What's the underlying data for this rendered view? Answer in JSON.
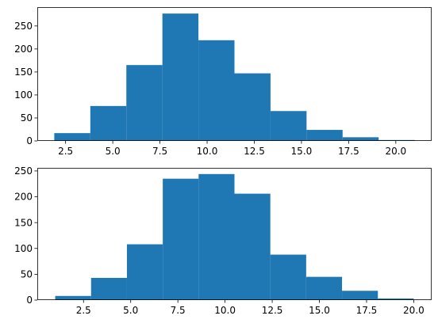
{
  "chart_data": [
    {
      "type": "histogram",
      "title": "",
      "xlabel": "",
      "ylabel": "",
      "bin_edges": [
        1.9,
        3.81,
        5.72,
        7.63,
        9.54,
        11.45,
        13.36,
        15.27,
        17.18,
        19.09,
        21.0
      ],
      "values": [
        17,
        76,
        165,
        277,
        219,
        147,
        65,
        24,
        8,
        2
      ],
      "xlim": [
        1.0,
        21.9
      ],
      "ylim": [
        0,
        291
      ],
      "xticks": [
        2.5,
        5.0,
        7.5,
        10.0,
        12.5,
        15.0,
        17.5,
        20.0
      ],
      "xtick_labels": [
        "2.5",
        "5.0",
        "7.5",
        "10.0",
        "12.5",
        "15.0",
        "17.5",
        "20.0"
      ],
      "yticks": [
        0,
        50,
        100,
        150,
        200,
        250
      ],
      "ytick_labels": [
        "0",
        "50",
        "100",
        "150",
        "200",
        "250"
      ],
      "grid": false,
      "color": "#1f77b4"
    },
    {
      "type": "histogram",
      "title": "",
      "xlabel": "",
      "ylabel": "",
      "bin_edges": [
        1.0,
        2.9,
        4.8,
        6.7,
        8.6,
        10.5,
        12.4,
        14.3,
        16.2,
        18.1,
        20.0
      ],
      "values": [
        8,
        43,
        108,
        235,
        244,
        206,
        88,
        45,
        18,
        3
      ],
      "xlim": [
        0.05,
        20.95
      ],
      "ylim": [
        0,
        256
      ],
      "xticks": [
        2.5,
        5.0,
        7.5,
        10.0,
        12.5,
        15.0,
        17.5,
        20.0
      ],
      "xtick_labels": [
        "2.5",
        "5.0",
        "7.5",
        "10.0",
        "12.5",
        "15.0",
        "17.5",
        "20.0"
      ],
      "yticks": [
        0,
        50,
        100,
        150,
        200,
        250
      ],
      "ytick_labels": [
        "0",
        "50",
        "100",
        "150",
        "200",
        "250"
      ],
      "grid": false,
      "color": "#1f77b4"
    }
  ]
}
